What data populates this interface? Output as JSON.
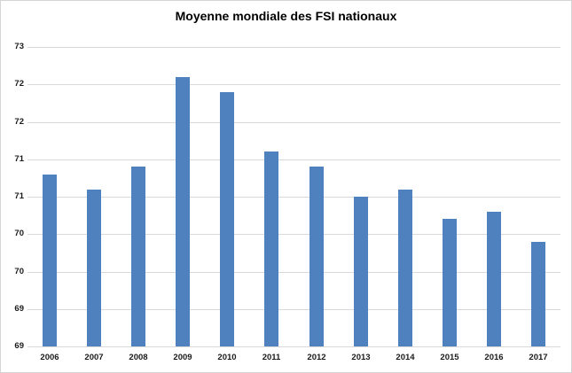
{
  "chart_data": {
    "type": "bar",
    "title": "Moyenne mondiale des FSI nationaux",
    "categories": [
      "2006",
      "2007",
      "2008",
      "2009",
      "2010",
      "2011",
      "2012",
      "2013",
      "2014",
      "2015",
      "2016",
      "2017"
    ],
    "values": [
      71.3,
      71.1,
      71.4,
      72.6,
      72.4,
      71.6,
      71.4,
      71.0,
      71.1,
      70.7,
      70.8,
      70.4
    ],
    "xlabel": "",
    "ylabel": "",
    "ylim": [
      69,
      73
    ],
    "ytick_step": 0.5,
    "ytick_labels_rendered": [
      "73",
      "72",
      "72",
      "71",
      "71",
      "70",
      "70",
      "69",
      "69"
    ],
    "grid": true,
    "legend": "none",
    "bar_color": "#4e81bd",
    "gridline_color": "#d9d9d9",
    "axis_text_color": "#1a1a1a",
    "title_color": "#000000",
    "border_color": "#d4d4d4",
    "background_color": "#ffffff"
  }
}
